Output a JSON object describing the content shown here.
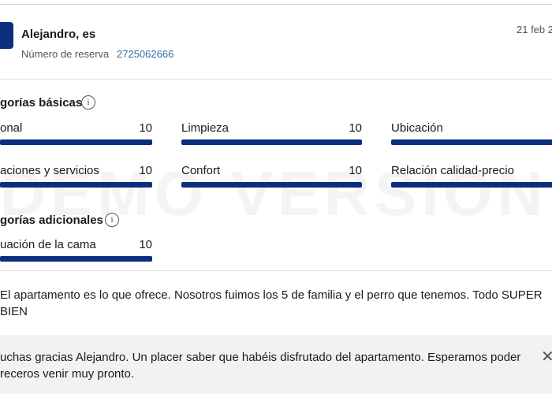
{
  "header": {
    "name": "Alejandro, es",
    "reservation_label": "Número de reserva",
    "reservation_number": "2725062666",
    "date": "21 feb 2"
  },
  "basic": {
    "title": "gorías básicas",
    "items": [
      {
        "label": "onal",
        "score": 10
      },
      {
        "label": "Limpieza",
        "score": 10
      },
      {
        "label": "Ubicación"
      },
      {
        "label": "aciones y servicios",
        "score": 10
      },
      {
        "label": "Confort",
        "score": 10
      },
      {
        "label": "Relación calidad-precio"
      }
    ]
  },
  "additional": {
    "title": "gorías adicionales",
    "items": [
      {
        "label": "uación de la cama",
        "score": 10
      }
    ]
  },
  "review": {
    "lines": [
      "El apartamento es lo que ofrece. Nosotros fuimos los 5 de familia y el perro que tenemos. Todo SUPER",
      "BIEN"
    ]
  },
  "reply": {
    "lines": [
      "uchas gracias Alejandro. Un placer saber que habéis disfrutado del apartamento. Esperamos poder",
      "receros venir muy pronto."
    ]
  },
  "watermark": "DEMO VERSION"
}
